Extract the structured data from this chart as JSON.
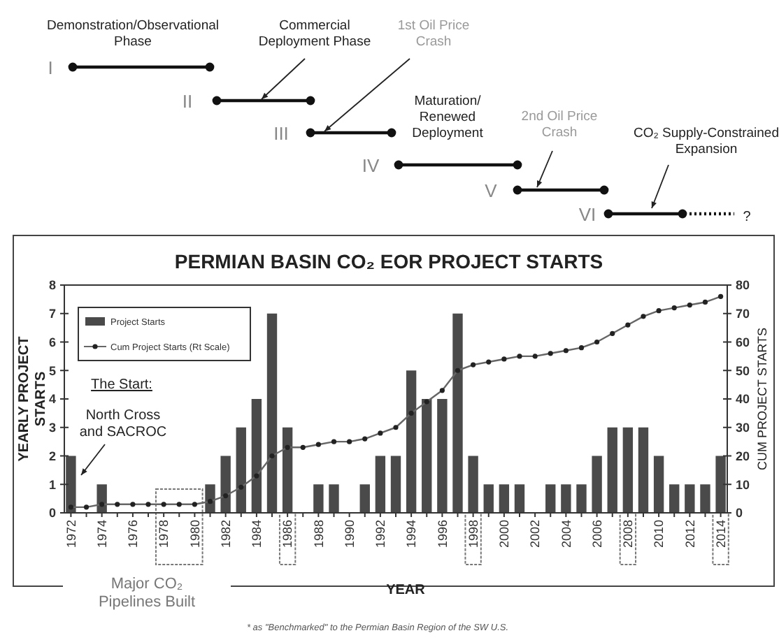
{
  "chart_data": {
    "type": "bar",
    "title": "PERMIAN BASIN CO₂ EOR PROJECT STARTS",
    "xlabel": "YEAR",
    "ylabel": "YEARLY PROJECT STARTS",
    "y2label": "CUM PROJECT STARTS",
    "categories": [
      "1972",
      null,
      "1974",
      null,
      "1976",
      null,
      "1978",
      null,
      "1980",
      null,
      "1982",
      null,
      "1984",
      null,
      "1986",
      null,
      "1988",
      null,
      "1990",
      null,
      "1992",
      null,
      "1994",
      null,
      "1996",
      null,
      "1998",
      null,
      "2000",
      null,
      "2002",
      null,
      "2004",
      null,
      "2006",
      null,
      "2008",
      null,
      "2010",
      null,
      "2012",
      null,
      "2014"
    ],
    "series": [
      {
        "name": "Project Starts",
        "color": "#4a4a4a",
        "values": [
          2,
          0,
          1,
          0,
          0,
          0,
          0,
          0,
          0,
          1,
          2,
          3,
          4,
          7,
          3,
          0,
          1,
          1,
          0,
          1,
          2,
          2,
          5,
          4,
          4,
          7,
          2,
          1,
          1,
          1,
          0,
          1,
          1,
          1,
          2,
          3,
          3,
          3,
          2,
          1,
          1,
          1,
          2
        ]
      },
      {
        "name": "Cum Project Starts (Rt Scale)",
        "type": "line",
        "axis": "y2",
        "color": "#666666",
        "values": [
          2,
          2,
          3,
          3,
          3,
          3,
          3,
          3,
          3,
          4,
          6,
          9,
          13,
          20,
          23,
          23,
          24,
          25,
          25,
          26,
          28,
          30,
          35,
          39,
          43,
          50,
          52,
          53,
          54,
          55,
          55,
          56,
          57,
          58,
          60,
          63,
          66,
          69,
          71,
          72,
          73,
          74,
          76
        ]
      }
    ],
    "ylim": [
      0,
      8
    ],
    "yticks": [
      0,
      1,
      2,
      3,
      4,
      5,
      6,
      7,
      8
    ],
    "y2lim": [
      0,
      80
    ],
    "y2ticks": [
      0,
      10,
      20,
      30,
      40,
      50,
      60,
      70,
      80
    ],
    "legend": "top left",
    "marker": "circle",
    "grid": false,
    "annotations": [
      "I",
      "II",
      "III",
      "IV",
      "V",
      "VI",
      "Demonstration/Observational\nPhase",
      "Commercial\nDeployment Phase",
      "1st Oil Price\nCrash",
      "Maturation/\nRenewed\nDeployment",
      "2nd Oil Price\nCrash",
      "CO₂ Supply-Constrained\nExpansion",
      "?",
      "The Start:",
      "North Cross\nand SACROC",
      "Major CO₂\nPipelines Built",
      "* as \"Benchmarked\" to the Permian Basin Region of the SW U.S."
    ]
  }
}
